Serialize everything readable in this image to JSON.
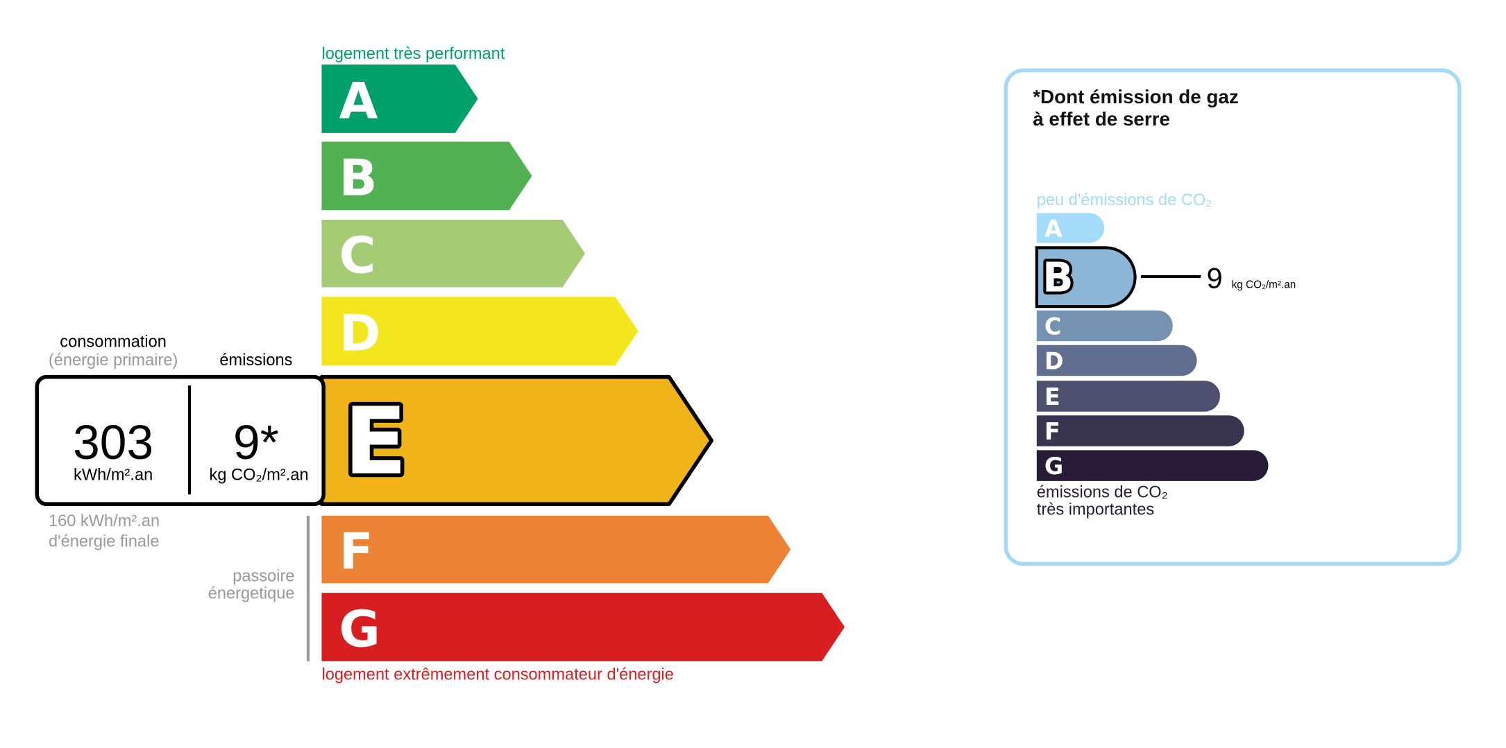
{
  "energy": {
    "top_label": "logement très performant",
    "bottom_label": "logement extrêmement consommateur d'énergie",
    "top_label_color": "#00A06B",
    "bottom_label_color": "#D71E20",
    "current_class": "E",
    "classes": [
      {
        "letter": "A",
        "color": "#00A06B"
      },
      {
        "letter": "B",
        "color": "#52B153"
      },
      {
        "letter": "C",
        "color": "#A5CC74"
      },
      {
        "letter": "D",
        "color": "#F3E61D"
      },
      {
        "letter": "E",
        "color": "#F0B41A"
      },
      {
        "letter": "F",
        "color": "#EB8235"
      },
      {
        "letter": "G",
        "color": "#D71E20"
      }
    ],
    "consumption_header": "consommation",
    "consumption_subheader": "(énergie primaire)",
    "emissions_header": "émissions",
    "consumption_value": "303",
    "consumption_unit": "kWh/m².an",
    "emissions_value": "9*",
    "emissions_unit": "kg CO₂/m².an",
    "final_energy_line1": "160 kWh/m².an",
    "final_energy_line2": "d'énergie finale",
    "passoire_line1": "passoire",
    "passoire_line2": "énergetique"
  },
  "ghg": {
    "title_line1": "*Dont émission de gaz",
    "title_line2": "à effet de serre",
    "top_label": "peu d'émissions de CO₂",
    "bottom_label_line1": "émissions de CO₂",
    "bottom_label_line2": "très importantes",
    "border_color": "#A5DAF6",
    "current_class": "B",
    "value": "9",
    "unit": "kg CO₂/m².an",
    "classes": [
      {
        "letter": "A",
        "color": "#A4DBF8"
      },
      {
        "letter": "B",
        "color": "#8DB5D5"
      },
      {
        "letter": "C",
        "color": "#7692B2"
      },
      {
        "letter": "D",
        "color": "#5F6D8E"
      },
      {
        "letter": "E",
        "color": "#4D4F6E"
      },
      {
        "letter": "F",
        "color": "#393551"
      },
      {
        "letter": "G",
        "color": "#281B35"
      }
    ]
  }
}
